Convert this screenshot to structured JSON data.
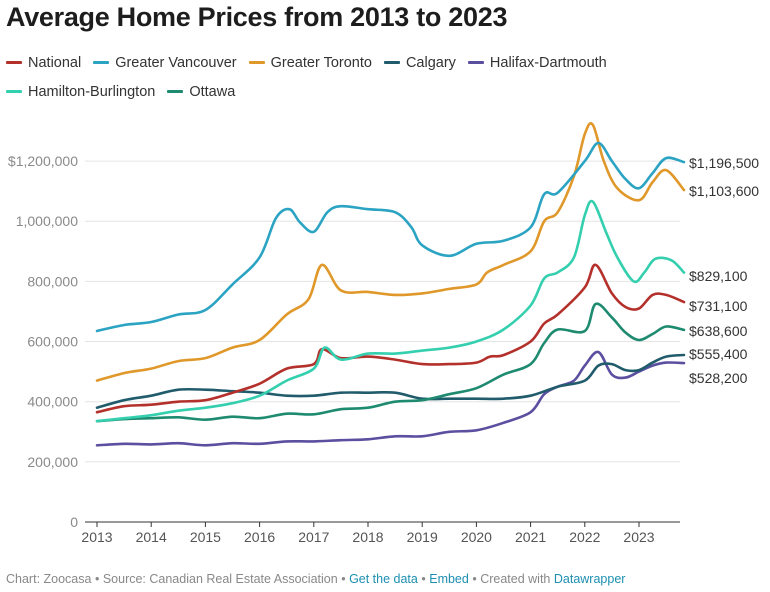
{
  "title": "Average Home Prices from 2013 to 2023",
  "footer": {
    "credit": "Chart: Zoocasa",
    "source": "Source: Canadian Real Estate Association",
    "get_data": "Get the data",
    "embed": "Embed",
    "created_with": "Created with",
    "datawrapper": "Datawrapper",
    "bullet": "•"
  },
  "chart_data": {
    "type": "line",
    "title": "Average Home Prices from 2013 to 2023",
    "xlabel": "",
    "ylabel": "",
    "xlim": [
      2013,
      2023.85
    ],
    "ylim": [
      0,
      1320000
    ],
    "x_ticks": [
      "2013",
      "2014",
      "2015",
      "2016",
      "2017",
      "2018",
      "2019",
      "2020",
      "2021",
      "2022",
      "2023"
    ],
    "y_ticks": [
      "0",
      "200,000",
      "400,000",
      "600,000",
      "800,000",
      "1,000,000",
      "$1,200,000"
    ],
    "grid": true,
    "legend_position": "top",
    "series": [
      {
        "name": "National",
        "color": "#b4302b",
        "end_label": "$731,100",
        "x": [
          2013,
          2013.5,
          2014,
          2014.5,
          2015,
          2015.5,
          2016,
          2016.5,
          2017,
          2017.15,
          2017.5,
          2018,
          2018.5,
          2019,
          2019.5,
          2020,
          2020.25,
          2020.5,
          2021,
          2021.25,
          2021.5,
          2022,
          2022.2,
          2022.5,
          2022.75,
          2023,
          2023.25,
          2023.5,
          2023.83
        ],
        "y": [
          365000,
          385000,
          390000,
          400000,
          405000,
          430000,
          460000,
          510000,
          525000,
          575000,
          545000,
          550000,
          540000,
          525000,
          525000,
          530000,
          550000,
          555000,
          600000,
          660000,
          690000,
          780000,
          855000,
          760000,
          715000,
          710000,
          755000,
          755000,
          731100
        ]
      },
      {
        "name": "Greater Vancouver",
        "color": "#2ba3c2",
        "end_label": "$1,196,500",
        "x": [
          2013,
          2013.5,
          2014,
          2014.5,
          2015,
          2015.5,
          2016,
          2016.3,
          2016.55,
          2016.75,
          2017,
          2017.25,
          2017.5,
          2018,
          2018.5,
          2018.8,
          2019,
          2019.5,
          2020,
          2020.5,
          2021,
          2021.25,
          2021.5,
          2022,
          2022.25,
          2022.5,
          2022.75,
          2023,
          2023.25,
          2023.5,
          2023.83
        ],
        "y": [
          635000,
          655000,
          665000,
          690000,
          705000,
          790000,
          880000,
          1010000,
          1040000,
          995000,
          965000,
          1030000,
          1050000,
          1040000,
          1030000,
          980000,
          920000,
          885000,
          925000,
          935000,
          980000,
          1090000,
          1095000,
          1200000,
          1260000,
          1200000,
          1140000,
          1110000,
          1160000,
          1210000,
          1196500
        ]
      },
      {
        "name": "Greater Toronto",
        "color": "#e0982a",
        "end_label": "$1,103,600",
        "x": [
          2013,
          2013.5,
          2014,
          2014.5,
          2015,
          2015.5,
          2016,
          2016.5,
          2016.9,
          2017.15,
          2017.5,
          2018,
          2018.5,
          2019,
          2019.5,
          2020,
          2020.2,
          2020.5,
          2021,
          2021.25,
          2021.5,
          2021.8,
          2022,
          2022.15,
          2022.35,
          2022.6,
          2023,
          2023.25,
          2023.5,
          2023.83
        ],
        "y": [
          470000,
          495000,
          510000,
          535000,
          545000,
          580000,
          605000,
          690000,
          740000,
          855000,
          770000,
          765000,
          755000,
          760000,
          775000,
          790000,
          830000,
          855000,
          900000,
          1000000,
          1030000,
          1150000,
          1290000,
          1320000,
          1200000,
          1110000,
          1070000,
          1130000,
          1170000,
          1103600
        ]
      },
      {
        "name": "Calgary",
        "color": "#215c6c",
        "end_label": "$555,400",
        "x": [
          2013,
          2013.5,
          2014,
          2014.5,
          2015,
          2015.5,
          2016,
          2016.5,
          2017,
          2017.5,
          2018,
          2018.5,
          2019,
          2019.5,
          2020,
          2020.5,
          2021,
          2021.5,
          2022,
          2022.25,
          2022.5,
          2022.75,
          2023,
          2023.25,
          2023.5,
          2023.83
        ],
        "y": [
          380000,
          405000,
          420000,
          440000,
          440000,
          435000,
          430000,
          420000,
          420000,
          430000,
          430000,
          430000,
          410000,
          410000,
          410000,
          410000,
          420000,
          450000,
          470000,
          520000,
          525000,
          505000,
          505000,
          530000,
          550000,
          555400
        ]
      },
      {
        "name": "Halifax-Dartmouth",
        "color": "#5b4fa0",
        "end_label": "$528,200",
        "x": [
          2013,
          2013.5,
          2014,
          2014.5,
          2015,
          2015.5,
          2016,
          2016.5,
          2017,
          2017.5,
          2018,
          2018.5,
          2019,
          2019.5,
          2020,
          2020.5,
          2021,
          2021.25,
          2021.5,
          2021.8,
          2022,
          2022.25,
          2022.5,
          2022.75,
          2023,
          2023.25,
          2023.5,
          2023.83
        ],
        "y": [
          255000,
          260000,
          258000,
          262000,
          255000,
          262000,
          260000,
          268000,
          268000,
          272000,
          275000,
          285000,
          285000,
          300000,
          305000,
          330000,
          365000,
          425000,
          450000,
          470000,
          520000,
          565000,
          490000,
          480000,
          500000,
          520000,
          530000,
          528200
        ]
      },
      {
        "name": "Hamilton-Burlington",
        "color": "#34cfae",
        "end_label": "$829,100",
        "x": [
          2013,
          2013.5,
          2014,
          2014.5,
          2015,
          2015.5,
          2016,
          2016.5,
          2017,
          2017.2,
          2017.5,
          2018,
          2018.5,
          2019,
          2019.5,
          2020,
          2020.5,
          2021,
          2021.25,
          2021.5,
          2021.8,
          2022,
          2022.15,
          2022.4,
          2022.6,
          2022.9,
          2023.1,
          2023.3,
          2023.6,
          2023.83
        ],
        "y": [
          335000,
          345000,
          355000,
          370000,
          380000,
          395000,
          420000,
          470000,
          510000,
          580000,
          540000,
          560000,
          560000,
          570000,
          580000,
          600000,
          640000,
          720000,
          810000,
          830000,
          880000,
          1020000,
          1065000,
          960000,
          880000,
          800000,
          830000,
          875000,
          870000,
          829100
        ]
      },
      {
        "name": "Ottawa",
        "color": "#1e8a70",
        "end_label": "$638,600",
        "x": [
          2013,
          2013.5,
          2014,
          2014.5,
          2015,
          2015.5,
          2016,
          2016.5,
          2017,
          2017.5,
          2018,
          2018.5,
          2019,
          2019.5,
          2020,
          2020.5,
          2021,
          2021.25,
          2021.5,
          2022,
          2022.2,
          2022.5,
          2022.75,
          2023,
          2023.25,
          2023.5,
          2023.83
        ],
        "y": [
          335000,
          342000,
          345000,
          348000,
          340000,
          350000,
          345000,
          360000,
          358000,
          375000,
          380000,
          400000,
          405000,
          425000,
          445000,
          490000,
          525000,
          595000,
          640000,
          635000,
          725000,
          680000,
          630000,
          605000,
          625000,
          650000,
          638600
        ]
      }
    ]
  }
}
